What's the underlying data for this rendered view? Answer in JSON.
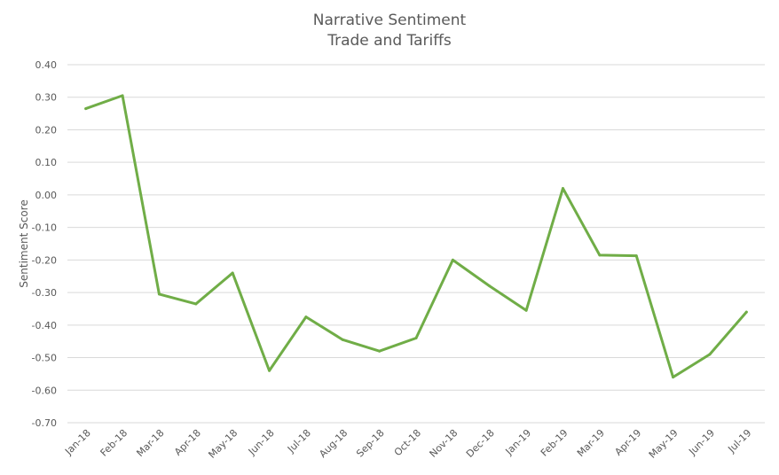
{
  "chart_data": {
    "type": "line",
    "title": [
      "Narrative Sentiment",
      "Trade and Tariffs"
    ],
    "xlabel": "",
    "ylabel": "Sentiment Score",
    "ylim": [
      -0.7,
      0.4
    ],
    "ytick_step": 0.1,
    "yticks": [
      "0.40",
      "0.30",
      "0.20",
      "0.10",
      "0.00",
      "-0.10",
      "-0.20",
      "-0.30",
      "-0.40",
      "-0.50",
      "-0.60",
      "-0.70"
    ],
    "grid": true,
    "legend": "none",
    "categories": [
      "Jan-18",
      "Feb-18",
      "Mar-18",
      "Apr-18",
      "May-18",
      "Jun-18",
      "Jul-18",
      "Aug-18",
      "Sep-18",
      "Oct-18",
      "Nov-18",
      "Dec-18",
      "Jan-19",
      "Feb-19",
      "Mar-19",
      "Apr-19",
      "May-19",
      "Jun-19",
      "Jul-19"
    ],
    "series": [
      {
        "values": [
          0.265,
          0.305,
          -0.305,
          -0.335,
          -0.24,
          -0.54,
          -0.375,
          -0.445,
          -0.48,
          -0.44,
          -0.2,
          -0.28,
          -0.355,
          0.02,
          -0.185,
          -0.187,
          -0.56,
          -0.49,
          -0.36
        ],
        "color": "#70ad47"
      }
    ]
  }
}
